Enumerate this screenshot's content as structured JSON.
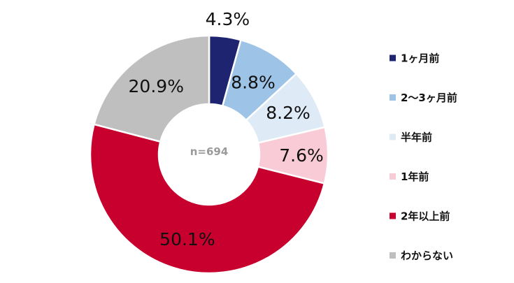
{
  "chart_data": {
    "type": "pie",
    "donut": true,
    "center_label": "n=694",
    "legend_position": "right",
    "categories": [
      "1ヶ月前",
      "2〜3ヶ月前",
      "半年前",
      "1年前",
      "2年以上前",
      "わからない"
    ],
    "values": [
      4.3,
      8.8,
      8.2,
      7.6,
      50.1,
      20.9
    ],
    "value_labels": [
      "4.3%",
      "8.8%",
      "8.2%",
      "7.6%",
      "50.1%",
      "20.9%"
    ],
    "colors": [
      "#1f2470",
      "#9dc3e6",
      "#deebf7",
      "#f8cbd6",
      "#c8002e",
      "#bfbfbf"
    ]
  }
}
